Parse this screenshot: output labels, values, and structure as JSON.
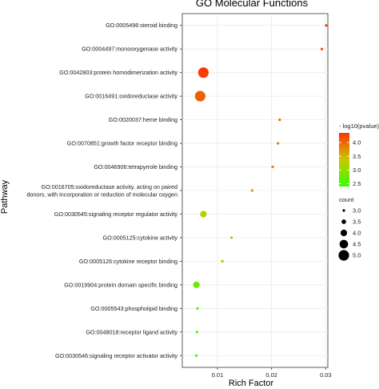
{
  "chart_data": {
    "type": "scatter",
    "title": "GO Molecular Functions",
    "xlabel": "Rich Factor",
    "ylabel": "Pathway",
    "xlim": [
      0.0035,
      0.0304
    ],
    "x_ticks": [
      {
        "value": 0.01,
        "label": "0.01"
      },
      {
        "value": 0.02,
        "label": "0.02"
      },
      {
        "value": 0.03,
        "label": "0.03"
      }
    ],
    "grid": true,
    "points": [
      {
        "category": [
          "GO:0005496:steroid binding"
        ],
        "rich_factor": 0.0301,
        "neg_log10_pvalue": 4.32,
        "count": 3
      },
      {
        "category": [
          "GO:0004497:monooxygenase activity"
        ],
        "rich_factor": 0.0293,
        "neg_log10_pvalue": 4.25,
        "count": 3
      },
      {
        "category": [
          "GO:0042803:protein homodimerization activity"
        ],
        "rich_factor": 0.0074,
        "neg_log10_pvalue": 4.3,
        "count": 5
      },
      {
        "category": [
          "GO:0016491:oxidoreductase activity"
        ],
        "rich_factor": 0.0068,
        "neg_log10_pvalue": 4.05,
        "count": 5
      },
      {
        "category": [
          "GO:0020037:heme binding"
        ],
        "rich_factor": 0.0215,
        "neg_log10_pvalue": 3.95,
        "count": 3
      },
      {
        "category": [
          "GO:0070851:growth factor receptor binding"
        ],
        "rich_factor": 0.0212,
        "neg_log10_pvalue": 3.9,
        "count": 3
      },
      {
        "category": [
          "GO:0046906:tetrapyrrole binding"
        ],
        "rich_factor": 0.0202,
        "neg_log10_pvalue": 3.85,
        "count": 3
      },
      {
        "category": [
          "GO:0016705:oxidoreductase activity, acting on paired",
          "donors, with incorporation or reduction of molecular oxygen"
        ],
        "rich_factor": 0.0164,
        "neg_log10_pvalue": 3.7,
        "count": 3
      },
      {
        "category": [
          "GO:0030545:signaling receptor regulator activity"
        ],
        "rich_factor": 0.0074,
        "neg_log10_pvalue": 3.25,
        "count": 4
      },
      {
        "category": [
          "GO:0005125:cytokine activity"
        ],
        "rich_factor": 0.0126,
        "neg_log10_pvalue": 3.05,
        "count": 3
      },
      {
        "category": [
          "GO:0005126:cytokine receptor binding"
        ],
        "rich_factor": 0.0109,
        "neg_log10_pvalue": 3.0,
        "count": 3
      },
      {
        "category": [
          "GO:0019904:protein domain specific binding"
        ],
        "rich_factor": 0.0061,
        "neg_log10_pvalue": 2.75,
        "count": 4
      },
      {
        "category": [
          "GO:0005543:phospholipid binding"
        ],
        "rich_factor": 0.0063,
        "neg_log10_pvalue": 2.55,
        "count": 3
      },
      {
        "category": [
          "GO:0048018:receptor ligand activity"
        ],
        "rich_factor": 0.0062,
        "neg_log10_pvalue": 2.52,
        "count": 3
      },
      {
        "category": [
          "GO:0030546:signaling receptor activator activity"
        ],
        "rich_factor": 0.0061,
        "neg_log10_pvalue": 2.5,
        "count": 3
      }
    ],
    "color_legend": {
      "title": "- log10(pvalue)",
      "range": [
        2.4,
        4.35
      ],
      "ticks": [
        {
          "value": 4.0,
          "label": "4.0"
        },
        {
          "value": 3.5,
          "label": "3.5"
        },
        {
          "value": 3.0,
          "label": "3.0"
        },
        {
          "value": 2.5,
          "label": "2.5"
        }
      ],
      "colors": [
        "#32ff00",
        "#c8c800",
        "#ff3300"
      ],
      "placement": "right"
    },
    "size_legend": {
      "title": "count",
      "entries": [
        {
          "value": 3.0,
          "label": "3.0"
        },
        {
          "value": 3.5,
          "label": "3.5"
        },
        {
          "value": 4.0,
          "label": "4.0"
        },
        {
          "value": 4.5,
          "label": "4.5"
        },
        {
          "value": 5.0,
          "label": "5.0"
        }
      ],
      "placement": "right"
    }
  }
}
